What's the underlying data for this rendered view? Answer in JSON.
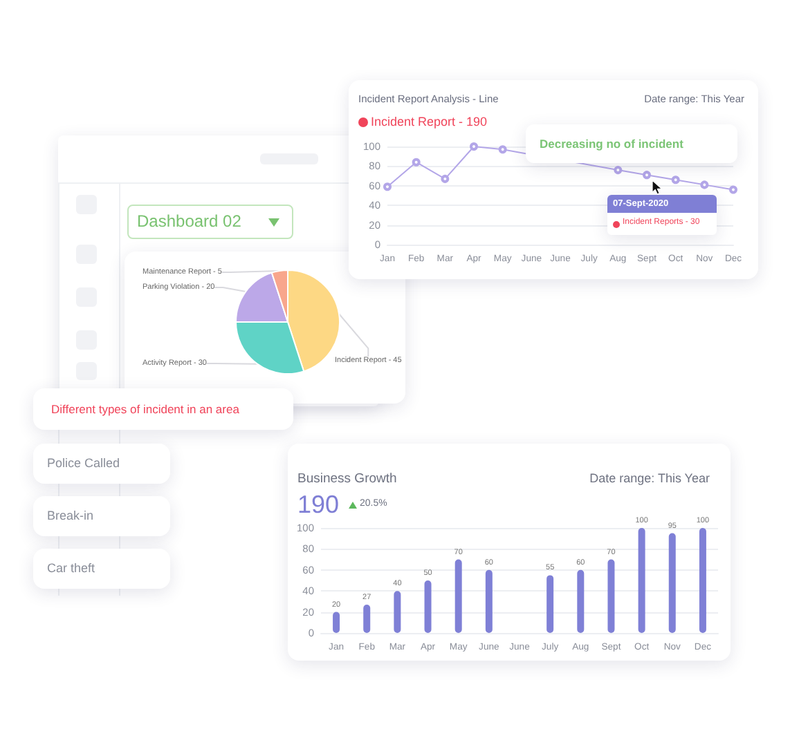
{
  "chart_data": [
    {
      "type": "line",
      "title": "Incident Report Analysis - Line",
      "subtitle": "Incident Report - 190",
      "annotations": [
        "Date range: This Year",
        "Decreasing no of incident",
        "07-Sept-2020",
        "Incident Reports - 30"
      ],
      "categories": [
        "Jan",
        "Feb",
        "Mar",
        "Apr",
        "May",
        "June",
        "June",
        "July",
        "Aug",
        "Sept",
        "Oct",
        "Nov",
        "Dec"
      ],
      "values": [
        59,
        84,
        67,
        100,
        97,
        null,
        null,
        null,
        76,
        71,
        66,
        61,
        56
      ],
      "color": "#b3a6e8",
      "ylim": [
        0,
        100
      ],
      "yticks": [
        0,
        20,
        40,
        60,
        80,
        100
      ],
      "grid": "y",
      "marker": "circle",
      "line_style": "solid"
    },
    {
      "type": "pie",
      "title": "Dashboard 02",
      "categories": [
        "Incident Report - 45",
        "Activity Report - 30",
        "Parking Violation - 20",
        "Maintenance Report - 5"
      ],
      "values": [
        45,
        30,
        20,
        5
      ],
      "colors": [
        "#fdd884",
        "#5fd3c6",
        "#bca8e8",
        "#f8a68c"
      ]
    },
    {
      "type": "other",
      "title": "Different types of incident in an area",
      "annotations": [
        "Police Called",
        "Break-in",
        "Car theft"
      ]
    },
    {
      "type": "bar",
      "title": "Business Growth",
      "annotations": [
        "Date range: This Year",
        "190",
        "20.5%"
      ],
      "categories": [
        "Jan",
        "Feb",
        "Mar",
        "Apr",
        "May",
        "June",
        "June",
        "July",
        "Aug",
        "Sept",
        "Oct",
        "Nov",
        "Dec"
      ],
      "values": [
        20,
        27,
        40,
        50,
        70,
        60,
        null,
        55,
        60,
        70,
        100,
        95,
        100
      ],
      "color": "#7f80d6",
      "ylim": [
        0,
        100
      ],
      "yticks": [
        0,
        20,
        40,
        60,
        80,
        100
      ],
      "grid": "y",
      "data_labels": true
    }
  ]
}
